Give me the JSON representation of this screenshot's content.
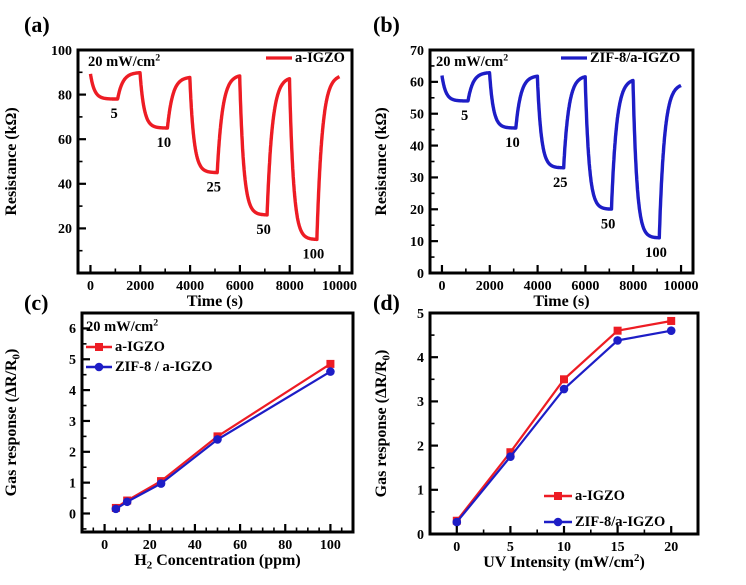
{
  "figure": {
    "background": "#ffffff",
    "colors": {
      "red": "#ed1c24",
      "blue": "#1d1dc6",
      "axis": "#000000",
      "text": "#000000"
    }
  },
  "chart_data": [
    {
      "panel_letter": "(a)",
      "type": "line",
      "xlabel": "Time (s)",
      "ylabel": "Resistance (kΩ)",
      "annotation": "20 mW/cm^{2}",
      "xlim": [
        -500,
        10500
      ],
      "ylim": [
        0,
        100
      ],
      "xticks": [
        0,
        2000,
        4000,
        6000,
        8000,
        10000
      ],
      "xminor_step": 1000,
      "yticks": [
        20,
        40,
        60,
        80,
        100
      ],
      "yminor_step": 10,
      "legend": [
        {
          "name": "a-IGZO",
          "color": "red"
        }
      ],
      "pulse": {
        "series_color": "red",
        "start": 90,
        "period": 2000,
        "on_end": 1100,
        "tau_on": 160,
        "tau_off": 210,
        "t_end": 10000,
        "labels": [
          "5",
          "10",
          "25",
          "50",
          "100"
        ],
        "minima": [
          78,
          65,
          45,
          26,
          15
        ],
        "peaks": [
          90,
          88,
          89,
          88,
          89
        ]
      }
    },
    {
      "panel_letter": "(b)",
      "type": "line",
      "xlabel": "Time (s)",
      "ylabel": "Resistance (kΩ)",
      "annotation": "20 mW/cm^{2}",
      "xlim": [
        -500,
        10500
      ],
      "ylim": [
        0,
        70
      ],
      "xticks": [
        0,
        2000,
        4000,
        6000,
        8000,
        10000
      ],
      "xminor_step": 1000,
      "yticks": [
        0,
        10,
        20,
        30,
        40,
        50,
        60,
        70
      ],
      "yminor_step": 5,
      "legend": [
        {
          "name": "ZIF-8/a-IGZO",
          "color": "blue"
        }
      ],
      "pulse": {
        "series_color": "blue",
        "start": 62.5,
        "period": 2000,
        "on_end": 1100,
        "tau_on": 160,
        "tau_off": 210,
        "t_end": 10000,
        "labels": [
          "5",
          "10",
          "25",
          "50",
          "100"
        ],
        "minima": [
          54,
          45.5,
          33,
          20,
          11
        ],
        "peaks": [
          63,
          62,
          62,
          61,
          59.5
        ]
      }
    },
    {
      "panel_letter": "(c)",
      "type": "scatter",
      "xlabel": "H_{2} Concentration (ppm)",
      "ylabel": "Gas response (ΔR/R_{0})",
      "annotation": "20 mW/cm^{2}",
      "xlim": [
        -10,
        110
      ],
      "ylim": [
        -0.6,
        6.5
      ],
      "xticks": [
        0,
        20,
        40,
        60,
        80,
        100
      ],
      "xminor_step": 5,
      "yticks": [
        0,
        1,
        2,
        3,
        4,
        5,
        6
      ],
      "yminor_step": 0.5,
      "legend_pos": "top-left",
      "series": [
        {
          "name": "a-IGZO",
          "color": "red",
          "marker": "square",
          "x": [
            5,
            10,
            25,
            50,
            100
          ],
          "y": [
            0.18,
            0.42,
            1.05,
            2.5,
            4.85
          ]
        },
        {
          "name": "ZIF-8 / a-IGZO",
          "color": "blue",
          "marker": "circle",
          "x": [
            5,
            10,
            25,
            50,
            100
          ],
          "y": [
            0.15,
            0.38,
            0.97,
            2.4,
            4.6
          ]
        }
      ]
    },
    {
      "panel_letter": "(d)",
      "type": "scatter",
      "xlabel": "UV Intensity (mW/cm^{2})",
      "ylabel": "Gas response (ΔR/R_{0})",
      "annotation": "",
      "xlim": [
        -2.5,
        22.5
      ],
      "ylim": [
        0,
        5
      ],
      "xticks": [
        0,
        5,
        10,
        15,
        20
      ],
      "xminor_step": 2.5,
      "yticks": [
        0,
        1,
        2,
        3,
        4,
        5
      ],
      "yminor_step": 0.5,
      "legend_pos": "bottom-right",
      "series": [
        {
          "name": "a-IGZO",
          "color": "red",
          "marker": "square",
          "x": [
            0,
            5,
            10,
            15,
            20
          ],
          "y": [
            0.3,
            1.85,
            3.5,
            4.6,
            4.82
          ]
        },
        {
          "name": "ZIF-8/a-IGZO",
          "color": "blue",
          "marker": "circle",
          "x": [
            0,
            5,
            10,
            15,
            20
          ],
          "y": [
            0.27,
            1.75,
            3.28,
            4.38,
            4.6
          ]
        }
      ]
    }
  ]
}
